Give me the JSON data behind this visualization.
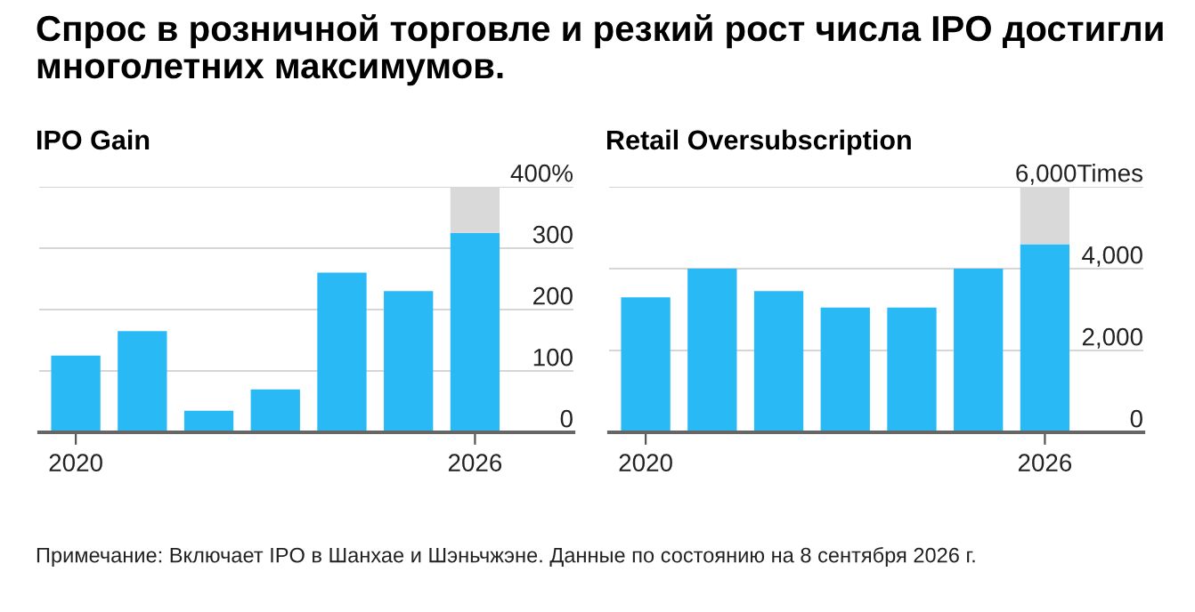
{
  "chart_data": [
    {
      "type": "bar",
      "title": "Спрос в розничной торговле и резкий рост числа IPO достигли многолетних максимумов.",
      "subtitle": "IPO Gain",
      "annotations": [
        "Примечание: Включает IPO в Шанхае и Шэньчжэне. Данные по состоянию на 8 сентября 2026 г."
      ],
      "categories": [
        "2020",
        null,
        null,
        null,
        null,
        null,
        "2026"
      ],
      "stacked": true,
      "series": [
        {
          "color": "#29b9f5",
          "values": [
            125,
            165,
            35,
            70,
            260,
            230,
            325
          ]
        },
        {
          "color": "#d9d9d9",
          "values": [
            null,
            null,
            null,
            null,
            null,
            null,
            75
          ]
        }
      ],
      "ylim": [
        0,
        400
      ],
      "yticks": [
        0,
        100,
        200,
        300,
        {
          "value": 400,
          "label": "400%"
        }
      ],
      "grid": "y"
    },
    {
      "type": "bar",
      "title": "Retail Oversubscription",
      "categories": [
        "2020",
        null,
        null,
        null,
        null,
        null,
        "2026"
      ],
      "stacked": true,
      "series": [
        {
          "color": "#29b9f5",
          "values": [
            3300,
            4000,
            3450,
            3050,
            3050,
            4000,
            4600
          ]
        },
        {
          "color": "#d9d9d9",
          "values": [
            null,
            null,
            null,
            null,
            null,
            null,
            1400
          ]
        }
      ],
      "ylim": [
        0,
        6000
      ],
      "yticks": [
        0,
        {
          "value": 2000,
          "label": "2,000"
        },
        {
          "value": 4000,
          "label": "4,000"
        },
        {
          "value": 6000,
          "label": "6,000Times"
        }
      ],
      "grid": "y"
    }
  ]
}
